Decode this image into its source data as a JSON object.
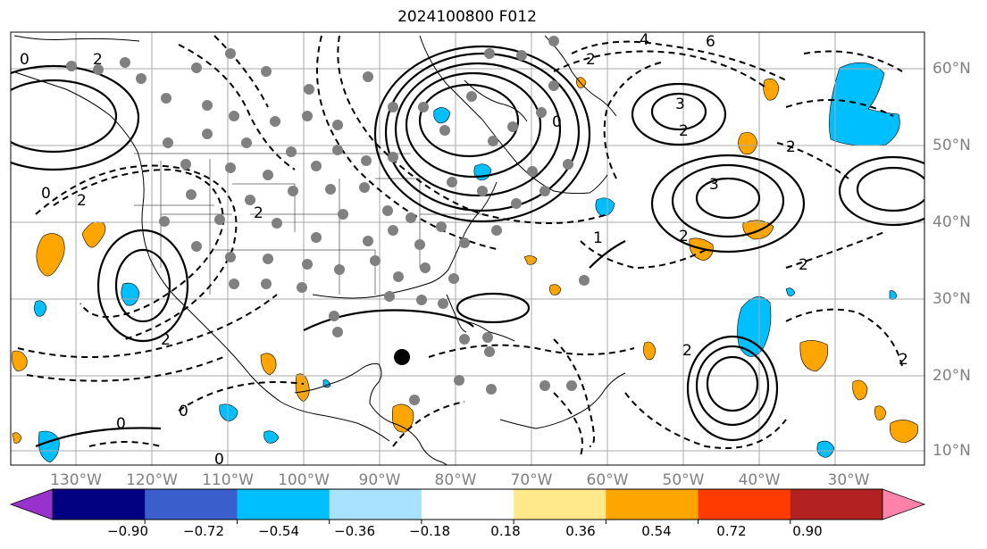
{
  "title": "2024100800 F012",
  "lon_labels": [
    "130°W",
    "120°W",
    "110°W",
    "100°W",
    "90°W",
    "80°W",
    "70°W",
    "60°W",
    "50°W",
    "40°W",
    "30°W"
  ],
  "lat_labels": [
    "60°N",
    "50°N",
    "40°N",
    "30°N",
    "20°N",
    "10°N"
  ],
  "colorbar": {
    "tick_labels": [
      "−0.90",
      "−0.72",
      "−0.54",
      "−0.36",
      "−0.18",
      "0.18",
      "0.36",
      "0.54",
      "0.72",
      "0.90"
    ],
    "colors": [
      "#9932cc",
      "#000080",
      "#3a5ecc",
      "#00bfff",
      "#a9e2ff",
      "#ffffff",
      "#ffe98a",
      "#ffa500",
      "#ff3c00",
      "#b22222",
      "#ff82ab"
    ]
  },
  "contour_labels": [
    "0",
    "2",
    "4",
    "6",
    "2",
    "0",
    "2",
    "3",
    "2",
    "3",
    "2",
    "2",
    "2",
    "0",
    "2",
    "2",
    "0",
    "0",
    "1",
    "0",
    "2",
    "2"
  ],
  "colors": {
    "positive_fill": "#ffa500",
    "negative_fill": "#00bfff",
    "station": "#808080",
    "grid": "#aaaaaa"
  }
}
